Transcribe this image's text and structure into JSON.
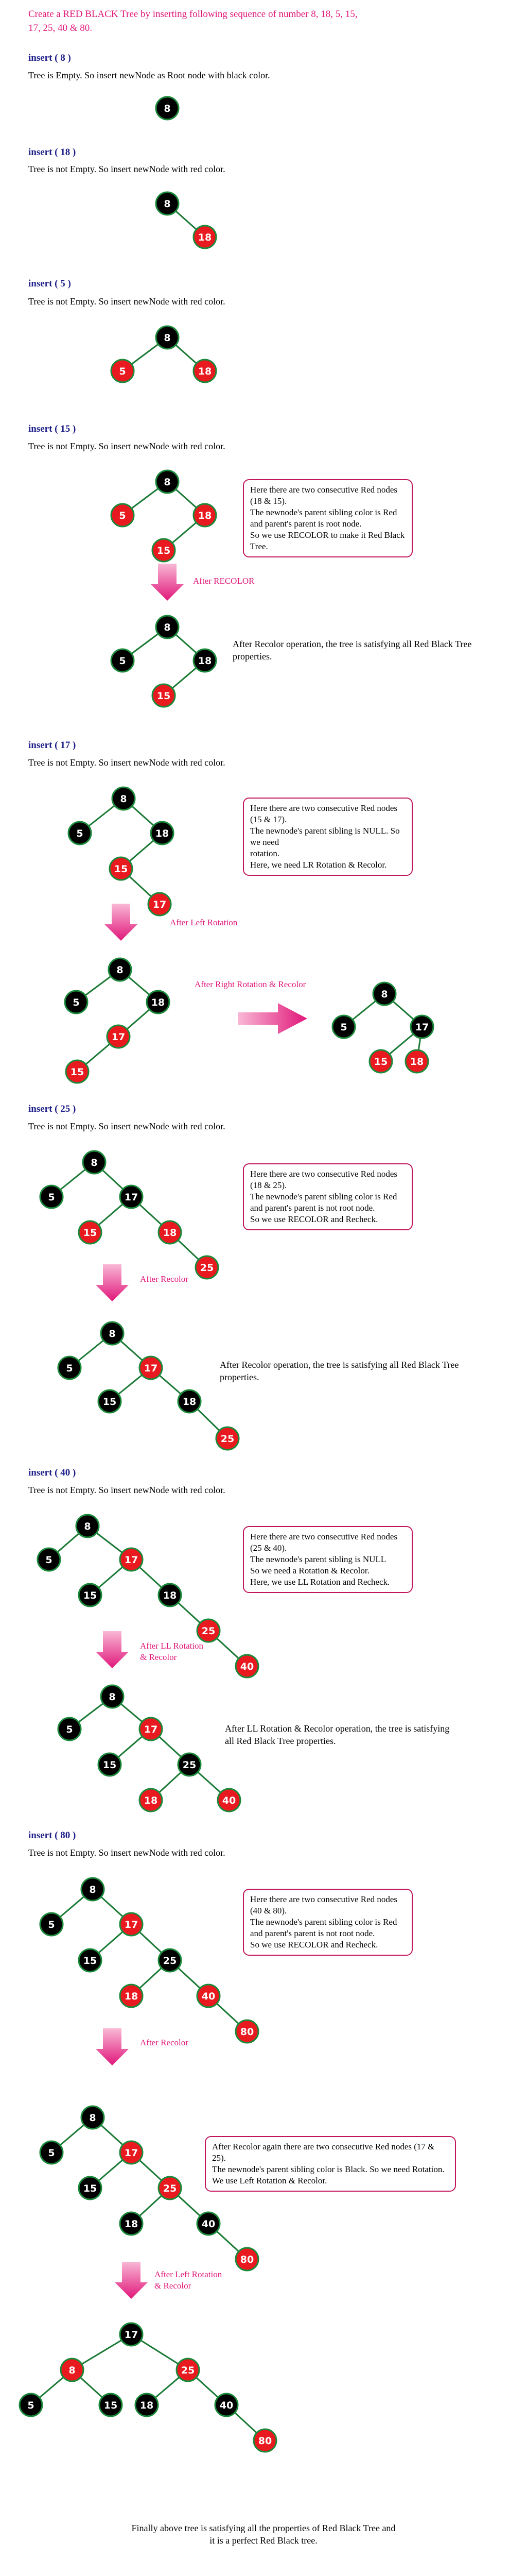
{
  "title": "Create a RED BLACK Tree by inserting following sequence of number 8, 18, 5, 15, 17, 25, 40 & 80.",
  "colors": {
    "red_node": "#e8191f",
    "black_node": "#000000",
    "node_ring": "#1b8a3a",
    "edge": "#1b7a35",
    "accent": "#e0177a",
    "note_border": "#c2185b",
    "step_heading": "#1f1f8a"
  },
  "steps": [
    {
      "heading": "insert ( 8 )",
      "description": "Tree is Empty. So insert newNode as Root node  with black color."
    },
    {
      "heading": "insert ( 18 )",
      "description": "Tree is not Empty. So insert newNode with red color."
    },
    {
      "heading": "insert ( 5 )",
      "description": "Tree is not Empty. So insert newNode with red color."
    },
    {
      "heading": "insert ( 15 )",
      "description": "Tree is not Empty. So insert newNode with red color."
    },
    {
      "heading": "insert ( 17 )",
      "description": "Tree is not Empty. So insert newNode with red color."
    },
    {
      "heading": "insert ( 25 )",
      "description": "Tree is not Empty. So insert newNode with red color."
    },
    {
      "heading": "insert ( 40 )",
      "description": "Tree is not Empty. So insert newNode with red color."
    },
    {
      "heading": "insert ( 80 )",
      "description": "Tree is not Empty. So insert newNode with red color."
    }
  ],
  "notes": {
    "n15": [
      "Here there are two consecutive Red nodes (18 & 15).",
      "The newnode's parent sibling color is Red",
      "and parent's parent is root node.",
      "So we use RECOLOR to make it Red Black Tree."
    ],
    "n17": [
      "Here there are two consecutive Red nodes (15 & 17).",
      "The newnode's parent sibling is NULL. So we need",
      "rotation.",
      "Here, we need LR Rotation & Recolor."
    ],
    "n25": [
      "Here there are two consecutive Red nodes (18 & 25).",
      "The newnode's parent sibling color is Red",
      "and parent's parent is not root node.",
      "So we use RECOLOR and Recheck."
    ],
    "n40": [
      "Here there are two consecutive Red nodes (25 & 40).",
      "The newnode's parent sibling is NULL",
      "So we need a Rotation & Recolor.",
      "Here, we use LL Rotation and Recheck."
    ],
    "n80": [
      "Here there are two consecutive Red nodes (40 & 80).",
      "The newnode's parent sibling color is Red",
      "and parent's parent is not root node.",
      "So we use RECOLOR and Recheck."
    ],
    "n80b": [
      "After Recolor again  there are two consecutive Red nodes (17 & 25).",
      "The newnode's parent sibling color is Black. So we need Rotation.",
      "We use Left Rotation & Recolor."
    ]
  },
  "side_texts": {
    "recolor15": [
      "After Recolor operation, the tree is satisfying all Red Black Tree",
      "properties."
    ],
    "recolor25": [
      "After Recolor operation, the tree is satisfying all Red Black Tree",
      "properties."
    ],
    "ll40": [
      "After LL Rotation & Recolor operation, the tree is satisfying",
      "all Red Black Tree properties."
    ]
  },
  "arrow_labels": {
    "a15": "After RECOLOR",
    "a17left": "After Left Rotation",
    "a17right": "After Right Rotation & Recolor",
    "a25": "After Recolor",
    "a40": [
      "After LL Rotation",
      "& Recolor"
    ],
    "a80": "After Recolor",
    "a80left": [
      "After Left Rotation",
      "& Recolor"
    ]
  },
  "final_text": [
    "Finally above tree is satisfying all the properties of Red Black Tree and",
    "it is a perfect Red Black tree."
  ],
  "trees": [
    {
      "id": "t1",
      "nodes": [
        {
          "v": "8",
          "c": "black"
        }
      ],
      "edges": []
    },
    {
      "id": "t2",
      "nodes": [
        {
          "v": "8",
          "c": "black"
        },
        {
          "v": "18",
          "c": "red"
        }
      ],
      "edges": [
        [
          0,
          1
        ]
      ]
    },
    {
      "id": "t3",
      "nodes": [
        {
          "v": "8",
          "c": "black"
        },
        {
          "v": "5",
          "c": "red"
        },
        {
          "v": "18",
          "c": "red"
        }
      ],
      "edges": [
        [
          0,
          1
        ],
        [
          0,
          2
        ]
      ]
    },
    {
      "id": "t4",
      "nodes": [
        {
          "v": "8",
          "c": "black"
        },
        {
          "v": "5",
          "c": "red"
        },
        {
          "v": "18",
          "c": "red"
        },
        {
          "v": "15",
          "c": "red"
        }
      ],
      "edges": [
        [
          0,
          1
        ],
        [
          0,
          2
        ],
        [
          2,
          3
        ]
      ]
    },
    {
      "id": "t5",
      "nodes": [
        {
          "v": "8",
          "c": "black"
        },
        {
          "v": "5",
          "c": "black"
        },
        {
          "v": "18",
          "c": "black"
        },
        {
          "v": "15",
          "c": "red"
        }
      ],
      "edges": [
        [
          0,
          1
        ],
        [
          0,
          2
        ],
        [
          2,
          3
        ]
      ]
    },
    {
      "id": "t6",
      "nodes": [
        {
          "v": "8",
          "c": "black"
        },
        {
          "v": "5",
          "c": "black"
        },
        {
          "v": "18",
          "c": "black"
        },
        {
          "v": "15",
          "c": "red"
        },
        {
          "v": "17",
          "c": "red"
        }
      ],
      "edges": [
        [
          0,
          1
        ],
        [
          0,
          2
        ],
        [
          2,
          3
        ],
        [
          3,
          4
        ]
      ]
    },
    {
      "id": "t7",
      "nodes": [
        {
          "v": "8",
          "c": "black"
        },
        {
          "v": "5",
          "c": "black"
        },
        {
          "v": "18",
          "c": "black"
        },
        {
          "v": "17",
          "c": "red"
        },
        {
          "v": "15",
          "c": "red"
        }
      ],
      "edges": [
        [
          0,
          1
        ],
        [
          0,
          2
        ],
        [
          2,
          3
        ],
        [
          3,
          4
        ]
      ]
    },
    {
      "id": "t8",
      "nodes": [
        {
          "v": "8",
          "c": "black"
        },
        {
          "v": "5",
          "c": "black"
        },
        {
          "v": "17",
          "c": "black"
        },
        {
          "v": "15",
          "c": "red"
        },
        {
          "v": "18",
          "c": "red"
        }
      ],
      "edges": [
        [
          0,
          1
        ],
        [
          0,
          2
        ],
        [
          2,
          3
        ],
        [
          2,
          4
        ]
      ]
    },
    {
      "id": "t9",
      "nodes": [
        {
          "v": "8",
          "c": "black"
        },
        {
          "v": "5",
          "c": "black"
        },
        {
          "v": "17",
          "c": "black"
        },
        {
          "v": "15",
          "c": "red"
        },
        {
          "v": "18",
          "c": "red"
        },
        {
          "v": "25",
          "c": "red"
        }
      ],
      "edges": [
        [
          0,
          1
        ],
        [
          0,
          2
        ],
        [
          2,
          3
        ],
        [
          2,
          4
        ],
        [
          4,
          5
        ]
      ]
    },
    {
      "id": "t10",
      "nodes": [
        {
          "v": "8",
          "c": "black"
        },
        {
          "v": "5",
          "c": "black"
        },
        {
          "v": "17",
          "c": "red"
        },
        {
          "v": "15",
          "c": "black"
        },
        {
          "v": "18",
          "c": "black"
        },
        {
          "v": "25",
          "c": "red"
        }
      ],
      "edges": [
        [
          0,
          1
        ],
        [
          0,
          2
        ],
        [
          2,
          3
        ],
        [
          2,
          4
        ],
        [
          4,
          5
        ]
      ]
    },
    {
      "id": "t11",
      "nodes": [
        {
          "v": "8",
          "c": "black"
        },
        {
          "v": "5",
          "c": "black"
        },
        {
          "v": "17",
          "c": "red"
        },
        {
          "v": "15",
          "c": "black"
        },
        {
          "v": "18",
          "c": "black"
        },
        {
          "v": "25",
          "c": "red"
        },
        {
          "v": "40",
          "c": "red"
        }
      ],
      "edges": [
        [
          0,
          1
        ],
        [
          0,
          2
        ],
        [
          2,
          3
        ],
        [
          2,
          4
        ],
        [
          4,
          5
        ],
        [
          5,
          6
        ]
      ]
    },
    {
      "id": "t12",
      "nodes": [
        {
          "v": "8",
          "c": "black"
        },
        {
          "v": "5",
          "c": "black"
        },
        {
          "v": "17",
          "c": "red"
        },
        {
          "v": "15",
          "c": "black"
        },
        {
          "v": "25",
          "c": "black"
        },
        {
          "v": "18",
          "c": "red"
        },
        {
          "v": "40",
          "c": "red"
        }
      ],
      "edges": [
        [
          0,
          1
        ],
        [
          0,
          2
        ],
        [
          2,
          3
        ],
        [
          2,
          4
        ],
        [
          4,
          5
        ],
        [
          4,
          6
        ]
      ]
    },
    {
      "id": "t13",
      "nodes": [
        {
          "v": "8",
          "c": "black"
        },
        {
          "v": "5",
          "c": "black"
        },
        {
          "v": "17",
          "c": "red"
        },
        {
          "v": "15",
          "c": "black"
        },
        {
          "v": "25",
          "c": "black"
        },
        {
          "v": "18",
          "c": "red"
        },
        {
          "v": "40",
          "c": "red"
        },
        {
          "v": "80",
          "c": "red"
        }
      ],
      "edges": [
        [
          0,
          1
        ],
        [
          0,
          2
        ],
        [
          2,
          3
        ],
        [
          2,
          4
        ],
        [
          4,
          5
        ],
        [
          4,
          6
        ],
        [
          6,
          7
        ]
      ]
    },
    {
      "id": "t14",
      "nodes": [
        {
          "v": "8",
          "c": "black"
        },
        {
          "v": "5",
          "c": "black"
        },
        {
          "v": "17",
          "c": "red"
        },
        {
          "v": "15",
          "c": "black"
        },
        {
          "v": "25",
          "c": "red"
        },
        {
          "v": "18",
          "c": "black"
        },
        {
          "v": "40",
          "c": "black"
        },
        {
          "v": "80",
          "c": "red"
        }
      ],
      "edges": [
        [
          0,
          1
        ],
        [
          0,
          2
        ],
        [
          2,
          3
        ],
        [
          2,
          4
        ],
        [
          4,
          5
        ],
        [
          4,
          6
        ],
        [
          6,
          7
        ]
      ]
    },
    {
      "id": "t15",
      "nodes": [
        {
          "v": "17",
          "c": "black"
        },
        {
          "v": "8",
          "c": "red"
        },
        {
          "v": "25",
          "c": "red"
        },
        {
          "v": "5",
          "c": "black"
        },
        {
          "v": "15",
          "c": "black"
        },
        {
          "v": "18",
          "c": "black"
        },
        {
          "v": "40",
          "c": "black"
        },
        {
          "v": "80",
          "c": "red"
        }
      ],
      "edges": [
        [
          0,
          1
        ],
        [
          0,
          2
        ],
        [
          1,
          3
        ],
        [
          1,
          4
        ],
        [
          2,
          5
        ],
        [
          2,
          6
        ],
        [
          6,
          7
        ]
      ]
    }
  ]
}
